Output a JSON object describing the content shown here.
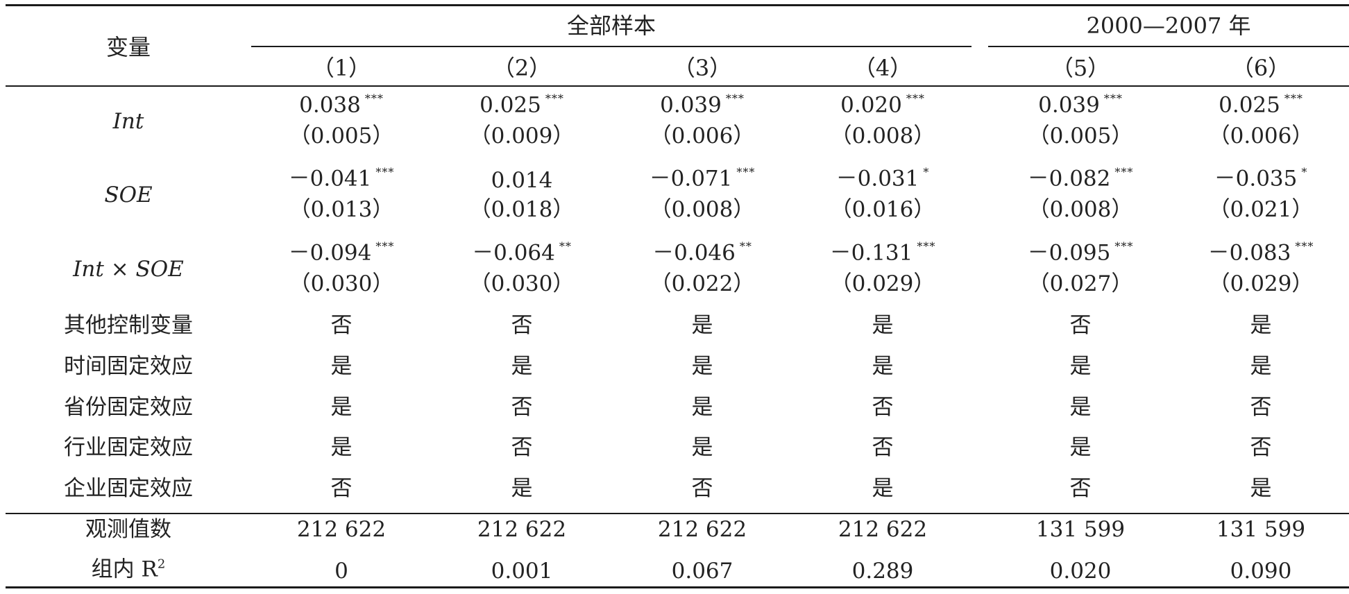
{
  "header": {
    "variable_label": "变量",
    "group_all": "全部样本",
    "group_sub": "2000—2007 年",
    "columns": [
      "（1）",
      "（2）",
      "（3）",
      "（4）",
      "（5）",
      "（6）"
    ]
  },
  "coef_rows": [
    {
      "variable": "Int",
      "estimates": [
        {
          "value": "0.038",
          "stars": "***"
        },
        {
          "value": "0.025",
          "stars": "***"
        },
        {
          "value": "0.039",
          "stars": "***"
        },
        {
          "value": "0.020",
          "stars": "***"
        },
        {
          "value": "0.039",
          "stars": "***"
        },
        {
          "value": "0.025",
          "stars": "***"
        }
      ],
      "std_errors": [
        "（0.005）",
        "（0.009）",
        "（0.006）",
        "（0.008）",
        "（0.005）",
        "（0.006）"
      ]
    },
    {
      "variable": "SOE",
      "estimates": [
        {
          "value": "－0.041",
          "stars": "***"
        },
        {
          "value": "0.014",
          "stars": ""
        },
        {
          "value": "－0.071",
          "stars": "***"
        },
        {
          "value": "－0.031",
          "stars": "*"
        },
        {
          "value": "－0.082",
          "stars": "***"
        },
        {
          "value": "－0.035",
          "stars": "*"
        }
      ],
      "std_errors": [
        "（0.013）",
        "（0.018）",
        "（0.008）",
        "（0.016）",
        "（0.008）",
        "（0.021）"
      ]
    },
    {
      "variable": "Int × SOE",
      "estimates": [
        {
          "value": "－0.094",
          "stars": "***"
        },
        {
          "value": "－0.064",
          "stars": "**"
        },
        {
          "value": "－0.046",
          "stars": "**"
        },
        {
          "value": "－0.131",
          "stars": "***"
        },
        {
          "value": "－0.095",
          "stars": "***"
        },
        {
          "value": "－0.083",
          "stars": "***"
        }
      ],
      "std_errors": [
        "（0.030）",
        "（0.030）",
        "（0.022）",
        "（0.029）",
        "（0.027）",
        "（0.029）"
      ]
    }
  ],
  "control_rows": [
    {
      "label": "其他控制变量",
      "values": [
        "否",
        "否",
        "是",
        "是",
        "否",
        "是"
      ]
    },
    {
      "label": "时间固定效应",
      "values": [
        "是",
        "是",
        "是",
        "是",
        "是",
        "是"
      ]
    },
    {
      "label": "省份固定效应",
      "values": [
        "是",
        "否",
        "是",
        "否",
        "是",
        "否"
      ]
    },
    {
      "label": "行业固定效应",
      "values": [
        "是",
        "否",
        "是",
        "否",
        "是",
        "否"
      ]
    },
    {
      "label": "企业固定效应",
      "values": [
        "否",
        "是",
        "否",
        "是",
        "否",
        "是"
      ]
    }
  ],
  "stat_rows": [
    {
      "label": "观测值数",
      "values": [
        "212 622",
        "212 622",
        "212 622",
        "212 622",
        "131 599",
        "131 599"
      ]
    },
    {
      "label": "组内 R",
      "label_sup": "2",
      "values": [
        "0",
        "0.001",
        "0.067",
        "0.289",
        "0.020",
        "0.090"
      ]
    }
  ]
}
